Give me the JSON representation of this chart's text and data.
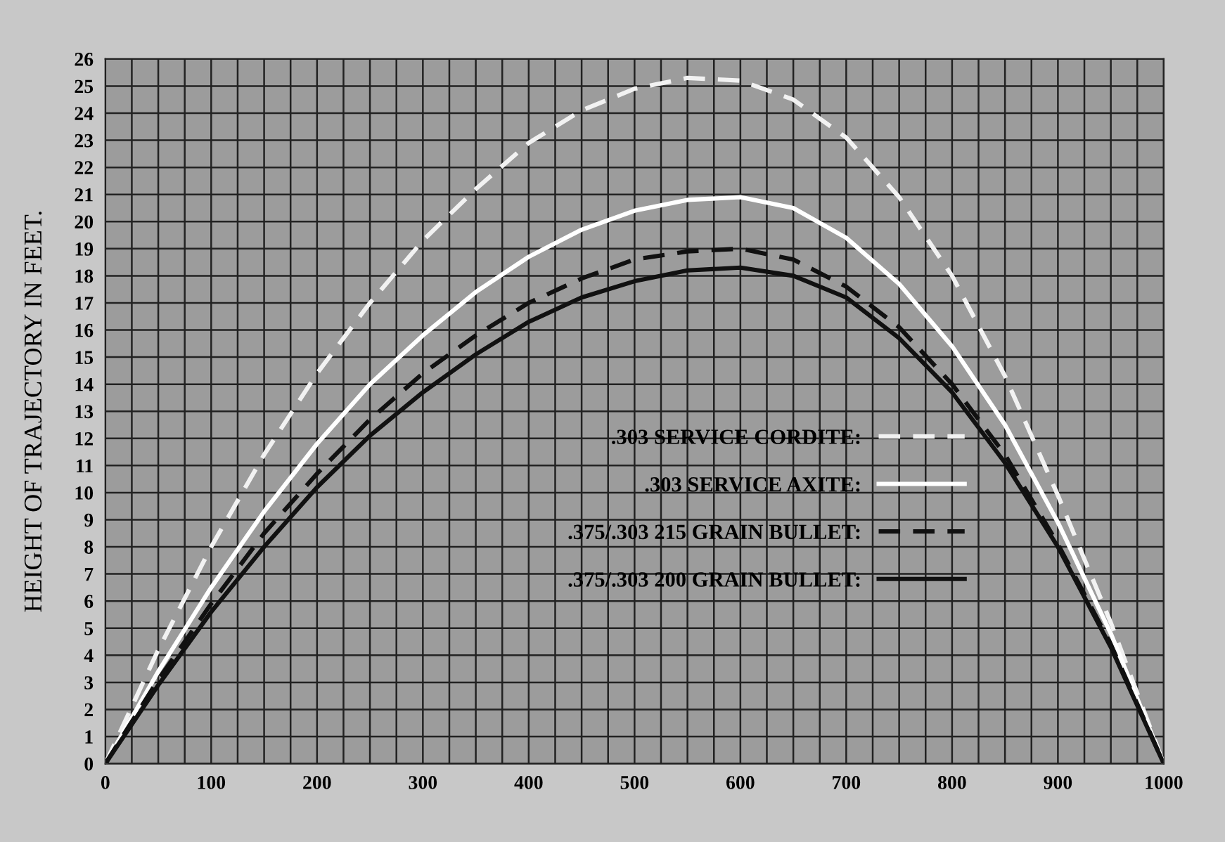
{
  "chart_data": {
    "type": "line",
    "ylabel": "HEIGHT OF TRAJECTORY IN FEET.",
    "x": [
      0,
      50,
      100,
      150,
      200,
      250,
      300,
      350,
      400,
      450,
      500,
      550,
      600,
      650,
      700,
      750,
      800,
      850,
      900,
      950,
      1000
    ],
    "series": [
      {
        "name": ".303 SERVICE CORDITE:",
        "color": "#f2f2f2",
        "line_style": "dashed",
        "values": [
          0,
          4.2,
          8.0,
          11.4,
          14.4,
          17.0,
          19.3,
          21.2,
          22.9,
          24.1,
          24.9,
          25.3,
          25.2,
          24.5,
          23.1,
          20.9,
          18.0,
          14.3,
          9.9,
          5.2,
          0
        ]
      },
      {
        "name": ".303 SERVICE AXITE:",
        "color": "#ffffff",
        "line_style": "solid",
        "values": [
          0,
          3.4,
          6.5,
          9.3,
          11.8,
          14.0,
          15.8,
          17.4,
          18.7,
          19.7,
          20.4,
          20.8,
          20.9,
          20.5,
          19.4,
          17.7,
          15.4,
          12.5,
          8.9,
          4.8,
          0
        ]
      },
      {
        "name": ".375/.303 215 GRAIN BULLET:",
        "color": "#111111",
        "line_style": "dashed",
        "values": [
          0,
          3.1,
          5.9,
          8.5,
          10.7,
          12.7,
          14.4,
          15.8,
          17.0,
          17.9,
          18.6,
          18.9,
          19.0,
          18.6,
          17.6,
          16.1,
          14.0,
          11.4,
          8.1,
          4.4,
          0
        ]
      },
      {
        "name": ".375/.303 200 GRAIN BULLET:",
        "color": "#111111",
        "line_style": "solid",
        "values": [
          0,
          2.9,
          5.6,
          8.0,
          10.2,
          12.1,
          13.7,
          15.1,
          16.3,
          17.2,
          17.8,
          18.2,
          18.3,
          18.0,
          17.2,
          15.7,
          13.7,
          11.1,
          8.0,
          4.3,
          0
        ]
      }
    ],
    "xlim": [
      0,
      1000
    ],
    "ylim": [
      0,
      26
    ],
    "xticks": [
      0,
      {
        "value": 25,
        "label": null
      },
      {
        "value": 50,
        "label": null
      },
      {
        "value": 75,
        "label": null
      },
      100,
      {
        "value": 125,
        "label": null
      },
      {
        "value": 150,
        "label": null
      },
      {
        "value": 175,
        "label": null
      },
      200,
      {
        "value": 225,
        "label": null
      },
      {
        "value": 250,
        "label": null
      },
      {
        "value": 275,
        "label": null
      },
      300,
      {
        "value": 325,
        "label": null
      },
      {
        "value": 350,
        "label": null
      },
      {
        "value": 375,
        "label": null
      },
      400,
      {
        "value": 425,
        "label": null
      },
      {
        "value": 450,
        "label": null
      },
      {
        "value": 475,
        "label": null
      },
      500,
      {
        "value": 525,
        "label": null
      },
      {
        "value": 550,
        "label": null
      },
      {
        "value": 575,
        "label": null
      },
      600,
      {
        "value": 625,
        "label": null
      },
      {
        "value": 650,
        "label": null
      },
      {
        "value": 675,
        "label": null
      },
      700,
      {
        "value": 725,
        "label": null
      },
      {
        "value": 750,
        "label": null
      },
      {
        "value": 775,
        "label": null
      },
      800,
      {
        "value": 825,
        "label": null
      },
      {
        "value": 850,
        "label": null
      },
      {
        "value": 875,
        "label": null
      },
      900,
      {
        "value": 925,
        "label": null
      },
      {
        "value": 950,
        "label": null
      },
      {
        "value": 975,
        "label": null
      },
      1000
    ],
    "yticks": [
      0,
      1,
      2,
      3,
      4,
      5,
      6,
      7,
      8,
      9,
      10,
      11,
      12,
      13,
      14,
      15,
      16,
      17,
      18,
      19,
      20,
      21,
      22,
      23,
      24,
      25,
      26
    ],
    "grid": true,
    "legend": "right",
    "marker": "none"
  }
}
